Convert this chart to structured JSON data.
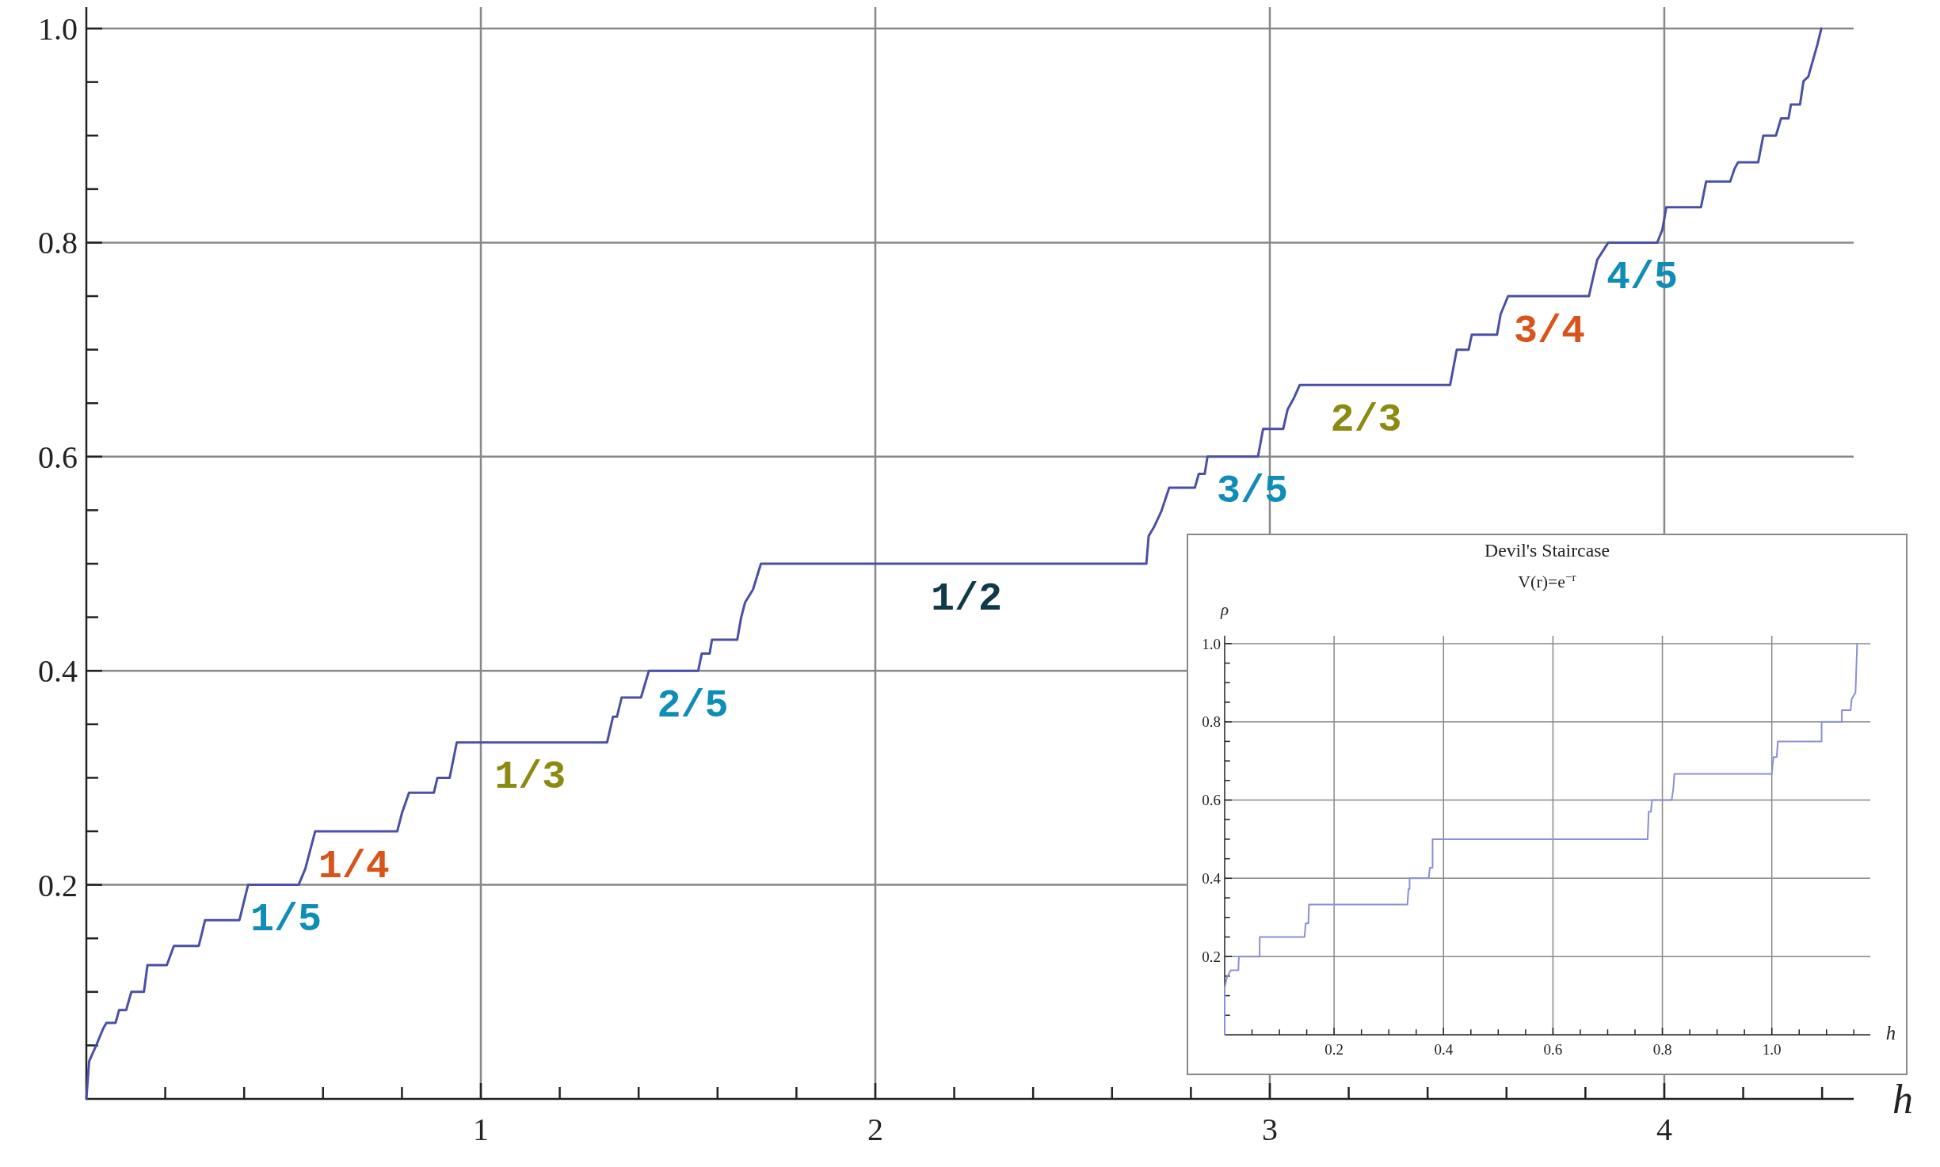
{
  "chart_data": [
    {
      "type": "line",
      "xlabel": "h",
      "grid": true,
      "xlim": [
        0,
        4.48
      ],
      "ylim": [
        0,
        1.02
      ],
      "xticks": [
        {
          "value": 0.2,
          "label": null
        },
        {
          "value": 0.4,
          "label": null
        },
        {
          "value": 0.6,
          "label": null
        },
        {
          "value": 0.8,
          "label": null
        },
        1,
        {
          "value": 1.2,
          "label": null
        },
        {
          "value": 1.4,
          "label": null
        },
        {
          "value": 1.6,
          "label": null
        },
        {
          "value": 1.8,
          "label": null
        },
        2,
        {
          "value": 2.2,
          "label": null
        },
        {
          "value": 2.4,
          "label": null
        },
        {
          "value": 2.6,
          "label": null
        },
        {
          "value": 2.8,
          "label": null
        },
        3,
        {
          "value": 3.2,
          "label": null
        },
        {
          "value": 3.4,
          "label": null
        },
        {
          "value": 3.6,
          "label": null
        },
        {
          "value": 3.8,
          "label": null
        },
        4,
        {
          "value": 4.2,
          "label": null
        },
        {
          "value": 4.4,
          "label": null
        }
      ],
      "yticks": [
        {
          "value": 0.05,
          "label": null
        },
        {
          "value": 0.1,
          "label": null
        },
        {
          "value": 0.15,
          "label": null
        },
        0.2,
        {
          "value": 0.25,
          "label": null
        },
        {
          "value": 0.3,
          "label": null
        },
        {
          "value": 0.35,
          "label": null
        },
        0.4,
        {
          "value": 0.45,
          "label": null
        },
        {
          "value": 0.5,
          "label": null
        },
        {
          "value": 0.55,
          "label": null
        },
        0.6,
        {
          "value": 0.65,
          "label": null
        },
        {
          "value": 0.7,
          "label": null
        },
        {
          "value": 0.75,
          "label": null
        },
        0.8,
        {
          "value": 0.85,
          "label": null
        },
        {
          "value": 0.9,
          "label": null
        },
        {
          "value": 0.95,
          "label": null
        },
        {
          "value": 1,
          "label": "1.0"
        }
      ],
      "x": [
        0,
        0.007,
        0.025,
        0.043,
        0.051,
        0.074,
        0.083,
        0.101,
        0.114,
        0.146,
        0.155,
        0.204,
        0.222,
        0.285,
        0.301,
        0.388,
        0.41,
        0.538,
        0.555,
        0.58,
        0.788,
        0.8,
        0.818,
        0.881,
        0.89,
        0.921,
        0.939,
        1.32,
        1.335,
        1.345,
        1.357,
        1.406,
        1.426,
        1.551,
        1.56,
        1.58,
        1.586,
        1.65,
        1.66,
        1.67,
        1.69,
        1.71,
        2.687,
        2.693,
        2.706,
        2.725,
        2.745,
        2.81,
        2.82,
        2.835,
        2.842,
        2.97,
        2.983,
        3.034,
        3.045,
        3.06,
        3.076,
        3.457,
        3.474,
        3.504,
        3.512,
        3.576,
        3.585,
        3.604,
        3.809,
        3.815,
        3.83,
        3.858,
        3.982,
        3.995,
        4.005,
        4.093,
        4.106,
        4.167,
        4.178,
        4.187,
        4.238,
        4.251,
        4.283,
        4.296,
        4.315,
        4.321,
        4.344,
        4.353,
        4.365,
        4.375,
        4.388,
        4.398
      ],
      "series": [
        {
          "color": "#4a50a8",
          "values": [
            0,
            0.035,
            0.05,
            0.066,
            0.071,
            0.071,
            0.083,
            0.083,
            0.1,
            0.1,
            0.125,
            0.125,
            0.143,
            0.143,
            0.167,
            0.167,
            0.2,
            0.2,
            0.215,
            0.25,
            0.25,
            0.267,
            0.286,
            0.286,
            0.3,
            0.3,
            0.333,
            0.333,
            0.357,
            0.357,
            0.375,
            0.375,
            0.4,
            0.4,
            0.416,
            0.416,
            0.429,
            0.429,
            0.45,
            0.464,
            0.476,
            0.5,
            0.5,
            0.526,
            0.534,
            0.549,
            0.571,
            0.571,
            0.584,
            0.584,
            0.6,
            0.6,
            0.626,
            0.626,
            0.644,
            0.654,
            0.667,
            0.667,
            0.7,
            0.7,
            0.714,
            0.714,
            0.733,
            0.75,
            0.75,
            0.76,
            0.784,
            0.8,
            0.8,
            0.812,
            0.833,
            0.833,
            0.857,
            0.857,
            0.869,
            0.875,
            0.875,
            0.9,
            0.9,
            0.916,
            0.916,
            0.929,
            0.929,
            0.951,
            0.955,
            0.968,
            0.985,
            1.0
          ]
        }
      ],
      "annotations": [
        {
          "text": "1/5",
          "x": 0.506,
          "y": 0.2
        },
        {
          "text": "1/4",
          "x": 0.678,
          "y": 0.25
        },
        {
          "text": "1/3",
          "x": 1.125,
          "y": 0.333
        },
        {
          "text": "2/5",
          "x": 1.537,
          "y": 0.4
        },
        {
          "text": "1/2",
          "x": 2.231,
          "y": 0.5
        },
        {
          "text": "3/5",
          "x": 2.956,
          "y": 0.6
        },
        {
          "text": "2/3",
          "x": 3.244,
          "y": 0.667
        },
        {
          "text": "3/4",
          "x": 3.709,
          "y": 0.75
        },
        {
          "text": "4/5",
          "x": 3.944,
          "y": 0.8
        }
      ]
    },
    {
      "type": "line",
      "title": "Devil's Staircase",
      "subtitle": "V(r)=e$^{−r}$",
      "xlabel": "h",
      "ylabel": "ρ",
      "grid": true,
      "xlim": [
        0,
        1.18
      ],
      "ylim": [
        0,
        1.02
      ],
      "xticks": [
        {
          "value": 0.05,
          "label": null
        },
        {
          "value": 0.1,
          "label": null
        },
        {
          "value": 0.15,
          "label": null
        },
        0.2,
        {
          "value": 0.25,
          "label": null
        },
        {
          "value": 0.3,
          "label": null
        },
        {
          "value": 0.35,
          "label": null
        },
        0.4,
        {
          "value": 0.45,
          "label": null
        },
        {
          "value": 0.5,
          "label": null
        },
        {
          "value": 0.55,
          "label": null
        },
        0.6,
        {
          "value": 0.65,
          "label": null
        },
        {
          "value": 0.7,
          "label": null
        },
        {
          "value": 0.75,
          "label": null
        },
        0.8,
        {
          "value": 0.85,
          "label": null
        },
        {
          "value": 0.9,
          "label": null
        },
        {
          "value": 0.95,
          "label": null
        },
        {
          "value": 1,
          "label": "1.0"
        },
        {
          "value": 1.05,
          "label": null
        },
        {
          "value": 1.1,
          "label": null
        },
        {
          "value": 1.15,
          "label": null
        }
      ],
      "yticks": [
        {
          "value": 0.05,
          "label": null
        },
        {
          "value": 0.1,
          "label": null
        },
        {
          "value": 0.15,
          "label": null
        },
        0.2,
        {
          "value": 0.25,
          "label": null
        },
        {
          "value": 0.3,
          "label": null
        },
        {
          "value": 0.35,
          "label": null
        },
        0.4,
        {
          "value": 0.45,
          "label": null
        },
        {
          "value": 0.5,
          "label": null
        },
        {
          "value": 0.55,
          "label": null
        },
        0.6,
        {
          "value": 0.65,
          "label": null
        },
        {
          "value": 0.7,
          "label": null
        },
        {
          "value": 0.75,
          "label": null
        },
        0.8,
        {
          "value": 0.85,
          "label": null
        },
        {
          "value": 0.9,
          "label": null
        },
        {
          "value": 0.95,
          "label": null
        },
        {
          "value": 1,
          "label": "1.0"
        }
      ],
      "x": [
        0,
        0,
        0.004,
        0.011,
        0.025,
        0.026,
        0.064,
        0.064,
        0.146,
        0.148,
        0.153,
        0.154,
        0.334,
        0.336,
        0.338,
        0.338,
        0.373,
        0.375,
        0.38,
        0.38,
        0.773,
        0.775,
        0.779,
        0.781,
        0.817,
        0.82,
        0.822,
        1.0,
        1.003,
        1.009,
        1.011,
        1.091,
        1.091,
        1.128,
        1.128,
        1.144,
        1.146,
        1.153,
        1.156
      ],
      "series": [
        {
          "color": "#8a8fd8",
          "values": [
            0,
            0.121,
            0.146,
            0.165,
            0.165,
            0.2,
            0.2,
            0.25,
            0.25,
            0.285,
            0.285,
            0.333,
            0.333,
            0.373,
            0.373,
            0.4,
            0.4,
            0.427,
            0.427,
            0.5,
            0.5,
            0.57,
            0.57,
            0.6,
            0.6,
            0.629,
            0.667,
            0.667,
            0.71,
            0.71,
            0.75,
            0.75,
            0.8,
            0.8,
            0.83,
            0.83,
            0.858,
            0.875,
            1.0
          ]
        }
      ]
    }
  ]
}
